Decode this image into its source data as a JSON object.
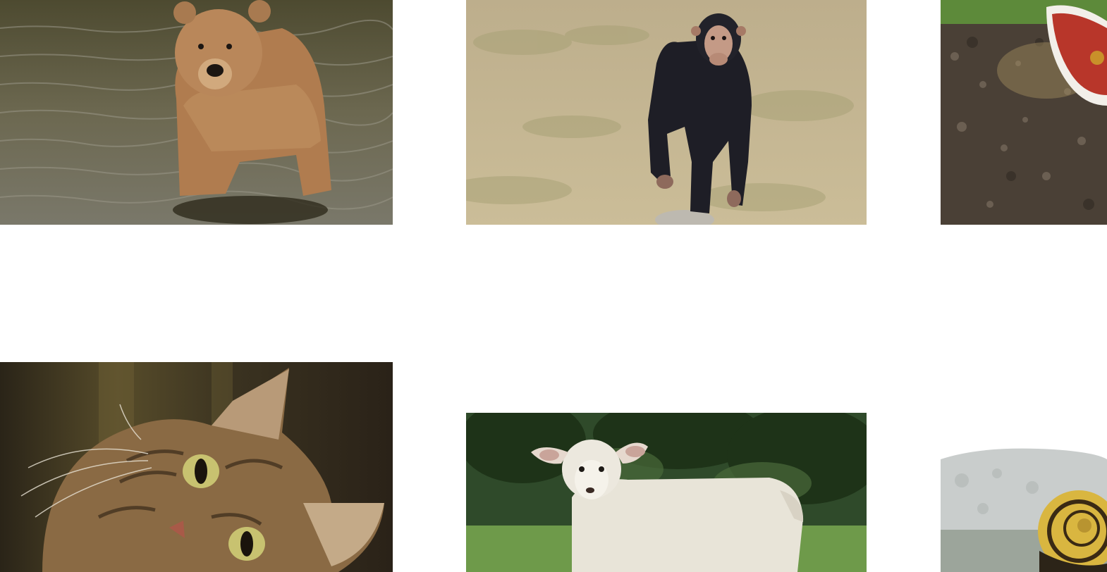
{
  "gallery": {
    "tiles": [
      {
        "animal": "bear"
      },
      {
        "animal": "chimpanzee"
      },
      {
        "animal": "hen"
      },
      {
        "animal": "cat"
      },
      {
        "animal": "lamb"
      },
      {
        "animal": "snail"
      }
    ]
  },
  "colors": {
    "page_background": "#ffffff",
    "water": "#5f5a3f",
    "bear_fur": "#b9875a",
    "dry_grass": "#c8b996",
    "chimp_fur": "#1e1e26",
    "soil": "#4a4036",
    "hen_red": "#b8362a",
    "cat_fur": "#8a6a44",
    "forest": "#2f4a2a",
    "meadow": "#6e9a4a",
    "wool": "#e8e4d8",
    "rock": "#c9cdcc",
    "snail_shell": "#d9b640"
  }
}
